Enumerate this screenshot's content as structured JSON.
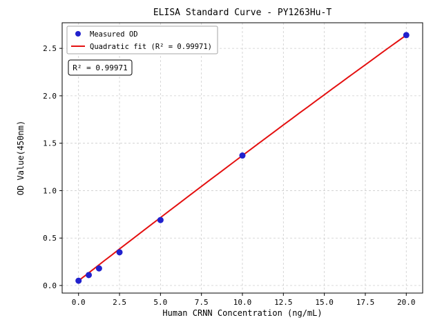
{
  "chart_data": {
    "type": "scatter",
    "title": "ELISA Standard Curve - PY1263Hu-T",
    "xlabel": "Human CRNN Concentration (ng/mL)",
    "ylabel": "OD Value(450nm)",
    "xlim": [
      -1,
      21
    ],
    "ylim": [
      -0.08,
      2.77
    ],
    "xticks": [
      0.0,
      2.5,
      5.0,
      7.5,
      10.0,
      12.5,
      15.0,
      17.5,
      20.0
    ],
    "xtick_labels": [
      "0.0",
      "2.5",
      "5.0",
      "7.5",
      "10.0",
      "12.5",
      "15.0",
      "17.5",
      "20.0"
    ],
    "yticks": [
      0.0,
      0.5,
      1.0,
      1.5,
      2.0,
      2.5
    ],
    "ytick_labels": [
      "0.0",
      "0.5",
      "1.0",
      "1.5",
      "2.0",
      "2.5"
    ],
    "grid": true,
    "points": {
      "x": [
        0,
        0.625,
        1.25,
        2.5,
        5,
        10,
        20
      ],
      "y": [
        0.05,
        0.11,
        0.18,
        0.35,
        0.69,
        1.37,
        2.64
      ]
    },
    "fit": {
      "type": "quadratic",
      "coefficients": {
        "a": -0.00025,
        "b": 0.1345,
        "c": 0.05
      },
      "x_range": [
        0,
        20
      ],
      "r_squared": 0.99971
    },
    "legend": {
      "position": "upper left",
      "entries": [
        {
          "marker": "circle",
          "label": "Measured OD"
        },
        {
          "marker": "line",
          "label": "Quadratic fit (R² = 0.99971)"
        }
      ]
    },
    "annotation": "R² = 0.99971",
    "colors": {
      "point": "#2121cd",
      "fit_line": "#e41010",
      "grid": "#cccccc",
      "axis": "#000000",
      "legend_border": "#a6a6a6",
      "background": "#ffffff"
    }
  }
}
